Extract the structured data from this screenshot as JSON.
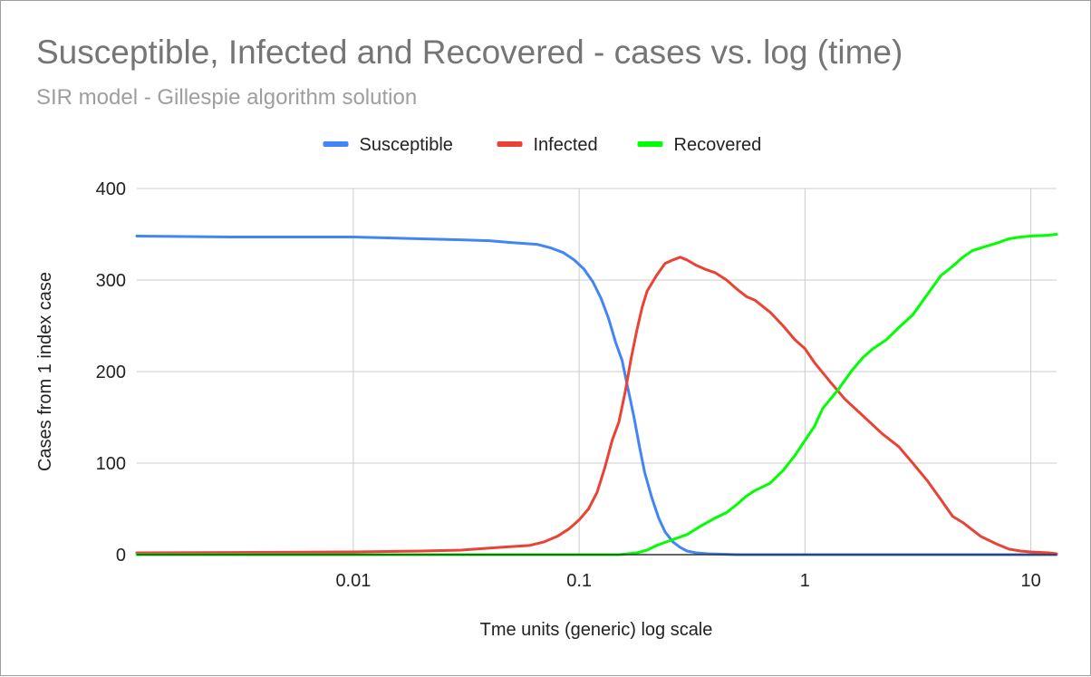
{
  "chart_data": {
    "type": "line",
    "title": "Susceptible, Infected and Recovered - cases vs. log (time)",
    "subtitle": "SIR model - Gillespie algorithm solution",
    "xlabel": "Tme units (generic) log scale",
    "ylabel": "Cases from 1 index case",
    "x_scale": "log",
    "xlim": [
      0.0011,
      13
    ],
    "ylim": [
      0,
      400
    ],
    "x_ticks": [
      {
        "value": 0.01,
        "label": "0.01"
      },
      {
        "value": 0.1,
        "label": "0.1"
      },
      {
        "value": 1,
        "label": "1"
      },
      {
        "value": 10,
        "label": "10"
      }
    ],
    "y_ticks": [
      {
        "value": 0,
        "label": "0"
      },
      {
        "value": 100,
        "label": "100"
      },
      {
        "value": 200,
        "label": "200"
      },
      {
        "value": 300,
        "label": "300"
      },
      {
        "value": 400,
        "label": "400"
      }
    ],
    "grid": true,
    "legend_position": "top",
    "series": [
      {
        "name": "Susceptible",
        "color": "#4285f4",
        "points": [
          [
            0.0011,
            348
          ],
          [
            0.003,
            347
          ],
          [
            0.01,
            347
          ],
          [
            0.02,
            345
          ],
          [
            0.03,
            344
          ],
          [
            0.04,
            343
          ],
          [
            0.05,
            341
          ],
          [
            0.065,
            339
          ],
          [
            0.075,
            335
          ],
          [
            0.085,
            330
          ],
          [
            0.095,
            322
          ],
          [
            0.105,
            312
          ],
          [
            0.115,
            298
          ],
          [
            0.125,
            280
          ],
          [
            0.135,
            258
          ],
          [
            0.145,
            232
          ],
          [
            0.155,
            212
          ],
          [
            0.165,
            180
          ],
          [
            0.175,
            150
          ],
          [
            0.185,
            118
          ],
          [
            0.195,
            90
          ],
          [
            0.21,
            62
          ],
          [
            0.225,
            40
          ],
          [
            0.24,
            25
          ],
          [
            0.26,
            14
          ],
          [
            0.28,
            8
          ],
          [
            0.3,
            4
          ],
          [
            0.33,
            2
          ],
          [
            0.37,
            1
          ],
          [
            0.5,
            0
          ],
          [
            1,
            0
          ],
          [
            5,
            0
          ],
          [
            13,
            0
          ]
        ]
      },
      {
        "name": "Infected",
        "color": "#ea4335",
        "points": [
          [
            0.0011,
            2
          ],
          [
            0.01,
            3
          ],
          [
            0.02,
            4
          ],
          [
            0.03,
            5
          ],
          [
            0.045,
            8
          ],
          [
            0.06,
            10
          ],
          [
            0.07,
            14
          ],
          [
            0.08,
            20
          ],
          [
            0.09,
            28
          ],
          [
            0.1,
            38
          ],
          [
            0.11,
            50
          ],
          [
            0.12,
            68
          ],
          [
            0.13,
            95
          ],
          [
            0.14,
            125
          ],
          [
            0.15,
            145
          ],
          [
            0.16,
            178
          ],
          [
            0.17,
            215
          ],
          [
            0.18,
            245
          ],
          [
            0.19,
            270
          ],
          [
            0.2,
            288
          ],
          [
            0.22,
            305
          ],
          [
            0.24,
            318
          ],
          [
            0.26,
            322
          ],
          [
            0.28,
            325
          ],
          [
            0.3,
            322
          ],
          [
            0.33,
            316
          ],
          [
            0.36,
            312
          ],
          [
            0.4,
            308
          ],
          [
            0.45,
            300
          ],
          [
            0.5,
            290
          ],
          [
            0.55,
            282
          ],
          [
            0.6,
            278
          ],
          [
            0.7,
            265
          ],
          [
            0.8,
            250
          ],
          [
            0.9,
            235
          ],
          [
            1,
            225
          ],
          [
            1.1,
            210
          ],
          [
            1.3,
            188
          ],
          [
            1.5,
            170
          ],
          [
            1.8,
            152
          ],
          [
            2.2,
            132
          ],
          [
            2.6,
            118
          ],
          [
            3,
            100
          ],
          [
            3.5,
            80
          ],
          [
            4,
            60
          ],
          [
            4.5,
            42
          ],
          [
            5,
            35
          ],
          [
            6,
            20
          ],
          [
            7,
            12
          ],
          [
            8,
            6
          ],
          [
            9,
            4
          ],
          [
            10,
            3
          ],
          [
            12,
            2
          ],
          [
            13,
            1
          ]
        ]
      },
      {
        "name": "Recovered",
        "color": "#00ff00",
        "points": [
          [
            0.0011,
            0
          ],
          [
            0.1,
            0
          ],
          [
            0.15,
            0
          ],
          [
            0.18,
            2
          ],
          [
            0.2,
            5
          ],
          [
            0.22,
            10
          ],
          [
            0.25,
            15
          ],
          [
            0.3,
            22
          ],
          [
            0.35,
            32
          ],
          [
            0.4,
            40
          ],
          [
            0.45,
            46
          ],
          [
            0.5,
            55
          ],
          [
            0.55,
            64
          ],
          [
            0.6,
            70
          ],
          [
            0.7,
            78
          ],
          [
            0.8,
            92
          ],
          [
            0.9,
            108
          ],
          [
            1,
            125
          ],
          [
            1.1,
            140
          ],
          [
            1.2,
            160
          ],
          [
            1.4,
            180
          ],
          [
            1.6,
            200
          ],
          [
            1.8,
            215
          ],
          [
            2,
            225
          ],
          [
            2.3,
            235
          ],
          [
            2.6,
            248
          ],
          [
            3,
            262
          ],
          [
            3.5,
            285
          ],
          [
            4,
            305
          ],
          [
            4.5,
            315
          ],
          [
            5,
            325
          ],
          [
            5.5,
            332
          ],
          [
            6,
            335
          ],
          [
            7,
            340
          ],
          [
            8,
            345
          ],
          [
            9,
            347
          ],
          [
            10,
            348
          ],
          [
            12,
            349
          ],
          [
            13,
            350
          ]
        ]
      }
    ]
  }
}
